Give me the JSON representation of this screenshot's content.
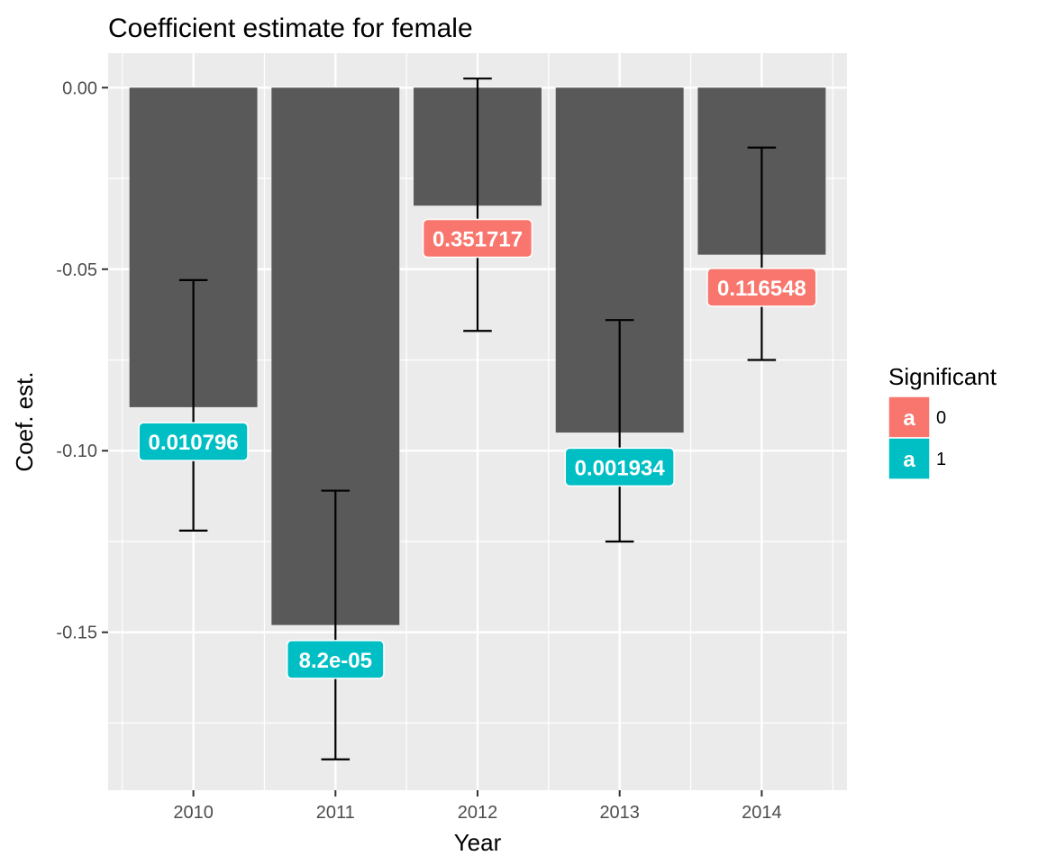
{
  "chart_data": {
    "type": "bar",
    "title": "Coefficient estimate for female",
    "xlabel": "Year",
    "ylabel": "Coef. est.",
    "categories": [
      "2010",
      "2011",
      "2012",
      "2013",
      "2014"
    ],
    "values": [
      -0.088,
      -0.148,
      -0.0325,
      -0.095,
      -0.046
    ],
    "error_lower": [
      -0.122,
      -0.185,
      -0.067,
      -0.125,
      -0.075
    ],
    "error_upper": [
      -0.053,
      -0.111,
      0.0025,
      -0.064,
      -0.0165
    ],
    "labels": [
      "0.010796",
      "8.2e-05",
      "0.351717",
      "0.001934",
      "0.116548"
    ],
    "label_y": [
      -0.0975,
      -0.1575,
      -0.0415,
      -0.1045,
      -0.055
    ],
    "significant": [
      "1",
      "1",
      "0",
      "1",
      "0"
    ],
    "ylim": [
      -0.1935,
      0.0095
    ],
    "y_ticks": [
      0.0,
      -0.05,
      -0.1,
      -0.15
    ],
    "y_tick_labels": [
      "0.00",
      "-0.05",
      "-0.10",
      "-0.15"
    ],
    "grid": true,
    "bar_color": "#595959",
    "panel_background": "#ebebeb",
    "legend": {
      "title": "Significant",
      "placement": "right",
      "key_letter": "a",
      "entries": [
        {
          "label": "0",
          "color": "#f8766d"
        },
        {
          "label": "1",
          "color": "#00bfc4"
        }
      ]
    }
  }
}
